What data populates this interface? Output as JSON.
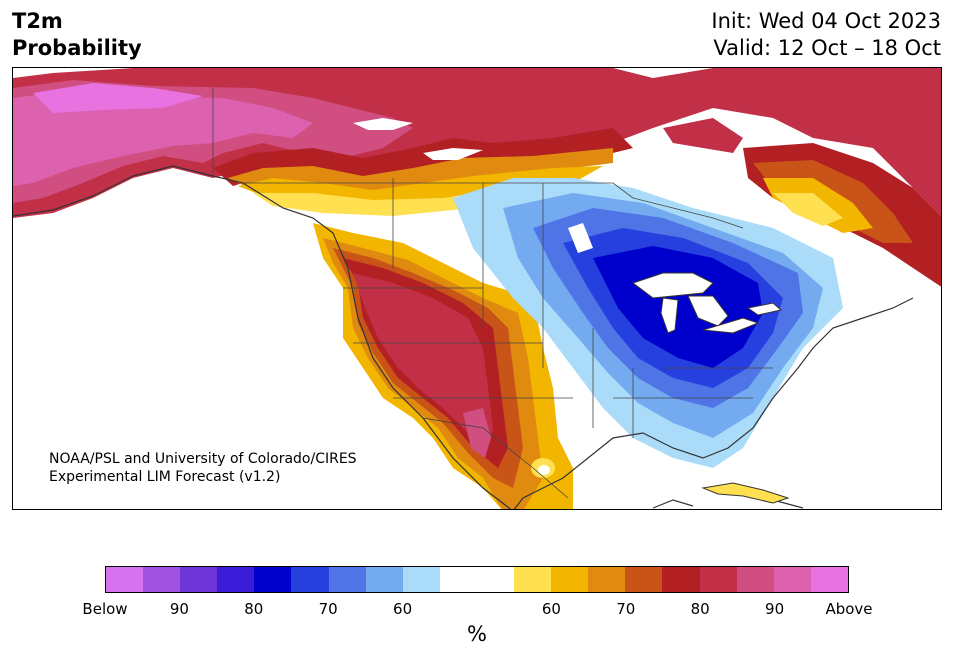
{
  "header": {
    "title_line1": "T2m",
    "title_line2": "Probability",
    "init_text": "Init: Wed 04 Oct 2023",
    "valid_text": "Valid: 12 Oct – 18 Oct"
  },
  "credit": {
    "line1": "NOAA/PSL and University of Colorado/CIRES",
    "line2": "Experimental LIM Forecast (v1.2)"
  },
  "colorbar": {
    "colors": [
      "#d672ee",
      "#a052e0",
      "#6d35d8",
      "#3a1bd8",
      "#0000cc",
      "#2640e0",
      "#4f74e6",
      "#74aaf0",
      "#aadcfa",
      "#ffffff",
      "#ffffff",
      "#ffe050",
      "#f2b600",
      "#e08a10",
      "#c95418",
      "#b22024",
      "#c23048",
      "#d04e80",
      "#dc62b0",
      "#e872e0"
    ],
    "tick_labels": [
      "Below",
      "90",
      "80",
      "70",
      "60",
      "60",
      "70",
      "80",
      "90",
      "Above"
    ],
    "unit_label": "%"
  },
  "map": {
    "regions": [
      "canada",
      "united-states",
      "mexico",
      "cuba",
      "greenland",
      "great-lakes"
    ],
    "anomaly_summary": {
      "below_normal_core": "Great Lakes / Upper Midwest",
      "above_normal_areas": [
        "Alaska & northern Canada",
        "Western US",
        "Northern Mexico",
        "Atlantic Canada"
      ]
    }
  }
}
